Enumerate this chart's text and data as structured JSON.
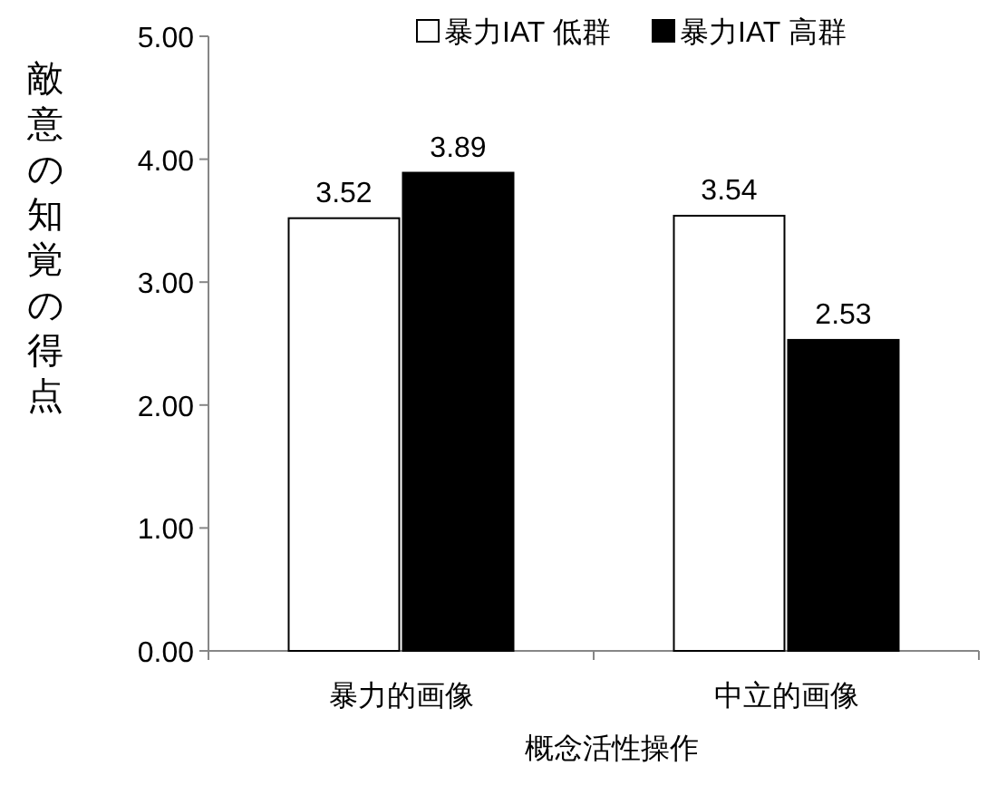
{
  "chart_data": {
    "type": "bar",
    "categories": [
      "暴力的画像",
      "中立的画像"
    ],
    "series": [
      {
        "name": "暴力IAT 低群",
        "color": "#ffffff",
        "values": [
          3.52,
          3.54
        ]
      },
      {
        "name": "暴力IAT 高群",
        "color": "#000000",
        "values": [
          3.89,
          2.53
        ]
      }
    ],
    "xlabel": "概念活性操作",
    "ylabel": "敵意の知覚の得点",
    "ylim": [
      0,
      5
    ],
    "yticks": [
      {
        "value": 0,
        "label": "0.00"
      },
      {
        "value": 1,
        "label": "1.00"
      },
      {
        "value": 2,
        "label": "2.00"
      },
      {
        "value": 3,
        "label": "3.00"
      },
      {
        "value": 4,
        "label": "4.00"
      },
      {
        "value": 5,
        "label": "5.00"
      }
    ],
    "data_labels": true,
    "legend": "top",
    "grid": false
  }
}
